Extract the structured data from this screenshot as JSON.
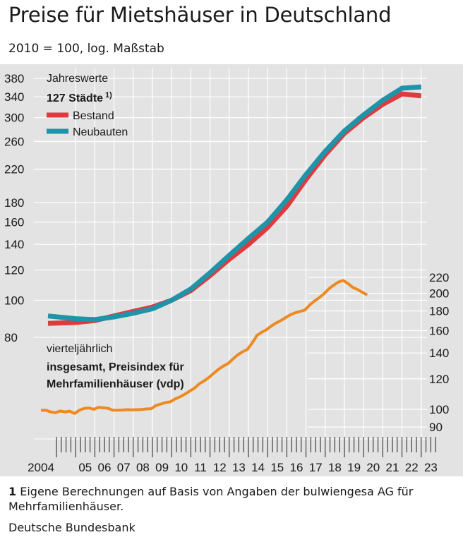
{
  "title": "Preise für Mietshäuser in Deutschland",
  "subtitle": "2010 = 100, log. Maßstab",
  "footnote": {
    "number": "1",
    "text": " Eigene Berechnungen auf Basis von Angaben der bulwiengesa AG für Mehrfamilienhäuser."
  },
  "source": "Deutsche Bundesbank",
  "colors": {
    "bestand": "#e03a3e",
    "neubauten": "#1f93a8",
    "vdp": "#ec8a22",
    "panel": "#e3e3e3"
  },
  "chart_data": [
    {
      "type": "line",
      "annotation_period": "Jahreswerte",
      "annotation_group": "127 Städte",
      "annotation_footnote_ref": "1)",
      "ylabel": "2010 = 100, log. Maßstab",
      "y_ticks": [
        "380",
        "340",
        "300",
        "260",
        "220",
        "180",
        "160",
        "140",
        "120",
        "100",
        "80"
      ],
      "ylim": [
        80,
        385
      ],
      "x": [
        2004,
        2005,
        2006,
        2007,
        2008,
        2009,
        2010,
        2011,
        2012,
        2013,
        2014,
        2015,
        2016,
        2017,
        2018,
        2019,
        2020,
        2021,
        2022,
        2023
      ],
      "series": [
        {
          "name": "Bestand",
          "values": [
            87,
            87.5,
            88.5,
            91,
            93.5,
            96,
            100,
            106,
            116,
            128,
            140,
            155,
            176,
            207,
            240,
            273,
            300,
            325,
            346,
            342
          ]
        },
        {
          "name": "Neubauten",
          "values": [
            91,
            89.5,
            89,
            90.5,
            92.5,
            95,
            100,
            107,
            118,
            131,
            145,
            160,
            183,
            213,
            245,
            277,
            305,
            333,
            358,
            361
          ]
        }
      ]
    },
    {
      "type": "line",
      "annotation_period": "vierteljährlich",
      "annotation_series": "insgesamt, Preisindex für Mehrfamilienhäuser (vdp)",
      "y_ticks": [
        "220",
        "200",
        "180",
        "160",
        "140",
        "120",
        "100",
        "90"
      ],
      "ylim": [
        88,
        225
      ],
      "x_start": 2004.0,
      "x_step": 0.25,
      "series": [
        {
          "name": "insgesamt, Preisindex für Mehrfamilienhäuser (vdp)",
          "values": [
            99.4,
            99.5,
            98.5,
            98,
            99,
            98.5,
            98.9,
            97.5,
            99.5,
            100.5,
            100.8,
            100,
            101.2,
            101,
            100.6,
            99.5,
            99.5,
            99.6,
            99.8,
            99.7,
            99.8,
            99.9,
            100.2,
            100.4,
            102.4,
            103.2,
            104.2,
            104.6,
            106.5,
            107.8,
            109.5,
            111.5,
            113.5,
            116.5,
            118.5,
            121,
            124,
            127,
            129.5,
            131.5,
            135,
            138.5,
            141,
            143,
            148.5,
            155.5,
            158.5,
            161,
            164.5,
            167.5,
            170,
            173,
            176,
            178,
            179.5,
            181,
            186.5,
            191,
            195,
            199.5,
            205.5,
            210,
            214,
            216,
            212,
            207,
            204.5,
            201,
            198
          ]
        }
      ]
    },
    {
      "type": "axis",
      "x_tick_labels": [
        "2004",
        "05",
        "06",
        "07",
        "08",
        "09",
        "10",
        "11",
        "12",
        "13",
        "14",
        "15",
        "16",
        "17",
        "18",
        "19",
        "20",
        "21",
        "22",
        "23"
      ]
    }
  ]
}
